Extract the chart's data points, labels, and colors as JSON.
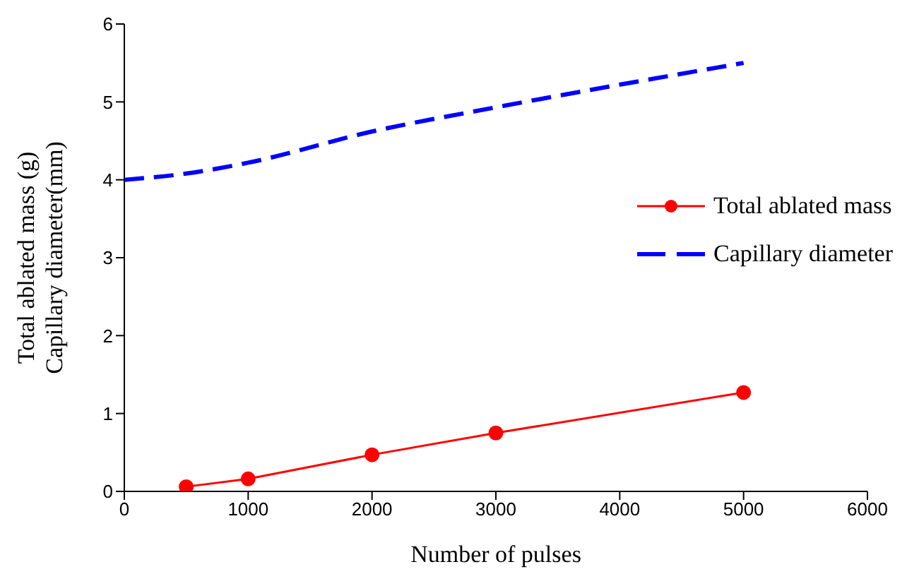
{
  "chart_data": {
    "type": "line",
    "xlabel": "Number of pulses",
    "ylabel": "Total ablated mass (g)\nCapillary diameter(mm)",
    "series": [
      {
        "name": "Total ablated mass",
        "color": "#ff0000",
        "x": [
          500,
          1000,
          2000,
          3000,
          5000
        ],
        "values": [
          0.06,
          0.16,
          0.47,
          0.75,
          1.27
        ],
        "marker": "circle",
        "line_style": "solid"
      },
      {
        "name": "Capillary diameter",
        "color": "#0000ff",
        "x": [
          0,
          500,
          1000,
          2000,
          3000,
          5000
        ],
        "values": [
          4.0,
          4.08,
          4.22,
          4.62,
          4.93,
          5.5
        ],
        "marker": "none",
        "line_style": "dashed"
      }
    ],
    "xlim": [
      0,
      6000
    ],
    "xticks": [
      0,
      1000,
      2000,
      3000,
      4000,
      5000,
      6000
    ],
    "ylim": [
      0,
      6
    ],
    "yticks": [
      0,
      1,
      2,
      3,
      4,
      5,
      6
    ],
    "grid": false,
    "legend": "right"
  }
}
